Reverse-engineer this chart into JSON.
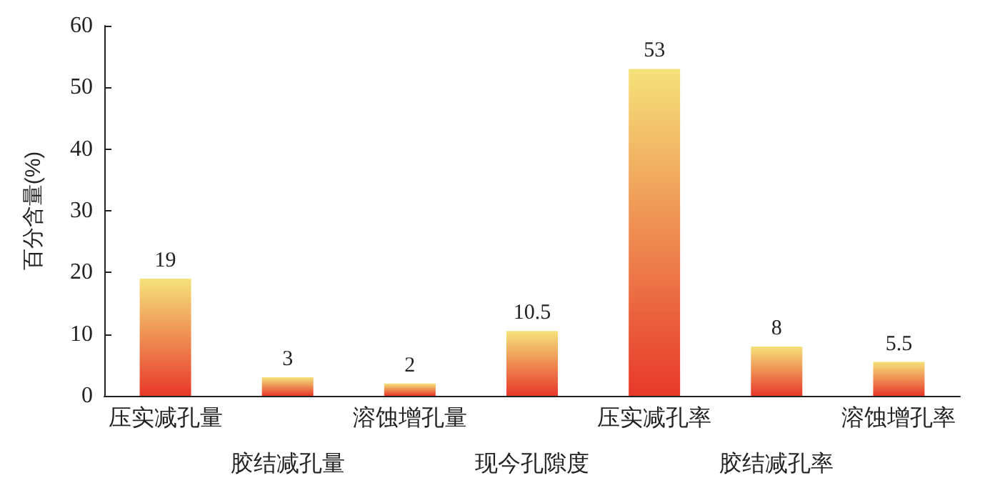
{
  "chart_data": {
    "type": "bar",
    "ylabel": "百分含量(%)",
    "categories": [
      "压实减孔量",
      "胶结减孔量",
      "溶蚀增孔量",
      "现今孔隙度",
      "压实减孔率",
      "胶结减孔率",
      "溶蚀增孔率"
    ],
    "values": [
      19,
      3,
      2,
      10.5,
      53,
      8,
      5.5
    ],
    "color": "#e8382a",
    "ylim": [
      0,
      60
    ],
    "yticks": [
      0,
      10,
      20,
      30,
      40,
      50,
      60
    ],
    "grid": false,
    "data_labels": true
  }
}
